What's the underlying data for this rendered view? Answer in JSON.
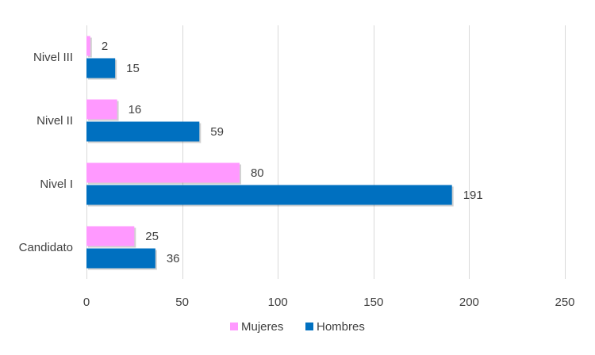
{
  "chart_data": {
    "type": "bar",
    "orientation": "horizontal",
    "title": "",
    "xlabel": "",
    "ylabel": "",
    "categories": [
      "Nivel III",
      "Nivel II",
      "Nivel I",
      "Candidato"
    ],
    "series": [
      {
        "name": "Mujeres",
        "color": "#FF99FF",
        "values": [
          2,
          16,
          80,
          25
        ]
      },
      {
        "name": "Hombres",
        "color": "#0070C0",
        "values": [
          15,
          59,
          191,
          36
        ]
      }
    ],
    "xlim": [
      0,
      250
    ],
    "x_ticks": [
      0,
      50,
      100,
      150,
      200,
      250
    ],
    "grid": "vertical",
    "legend": "bottom-center"
  }
}
